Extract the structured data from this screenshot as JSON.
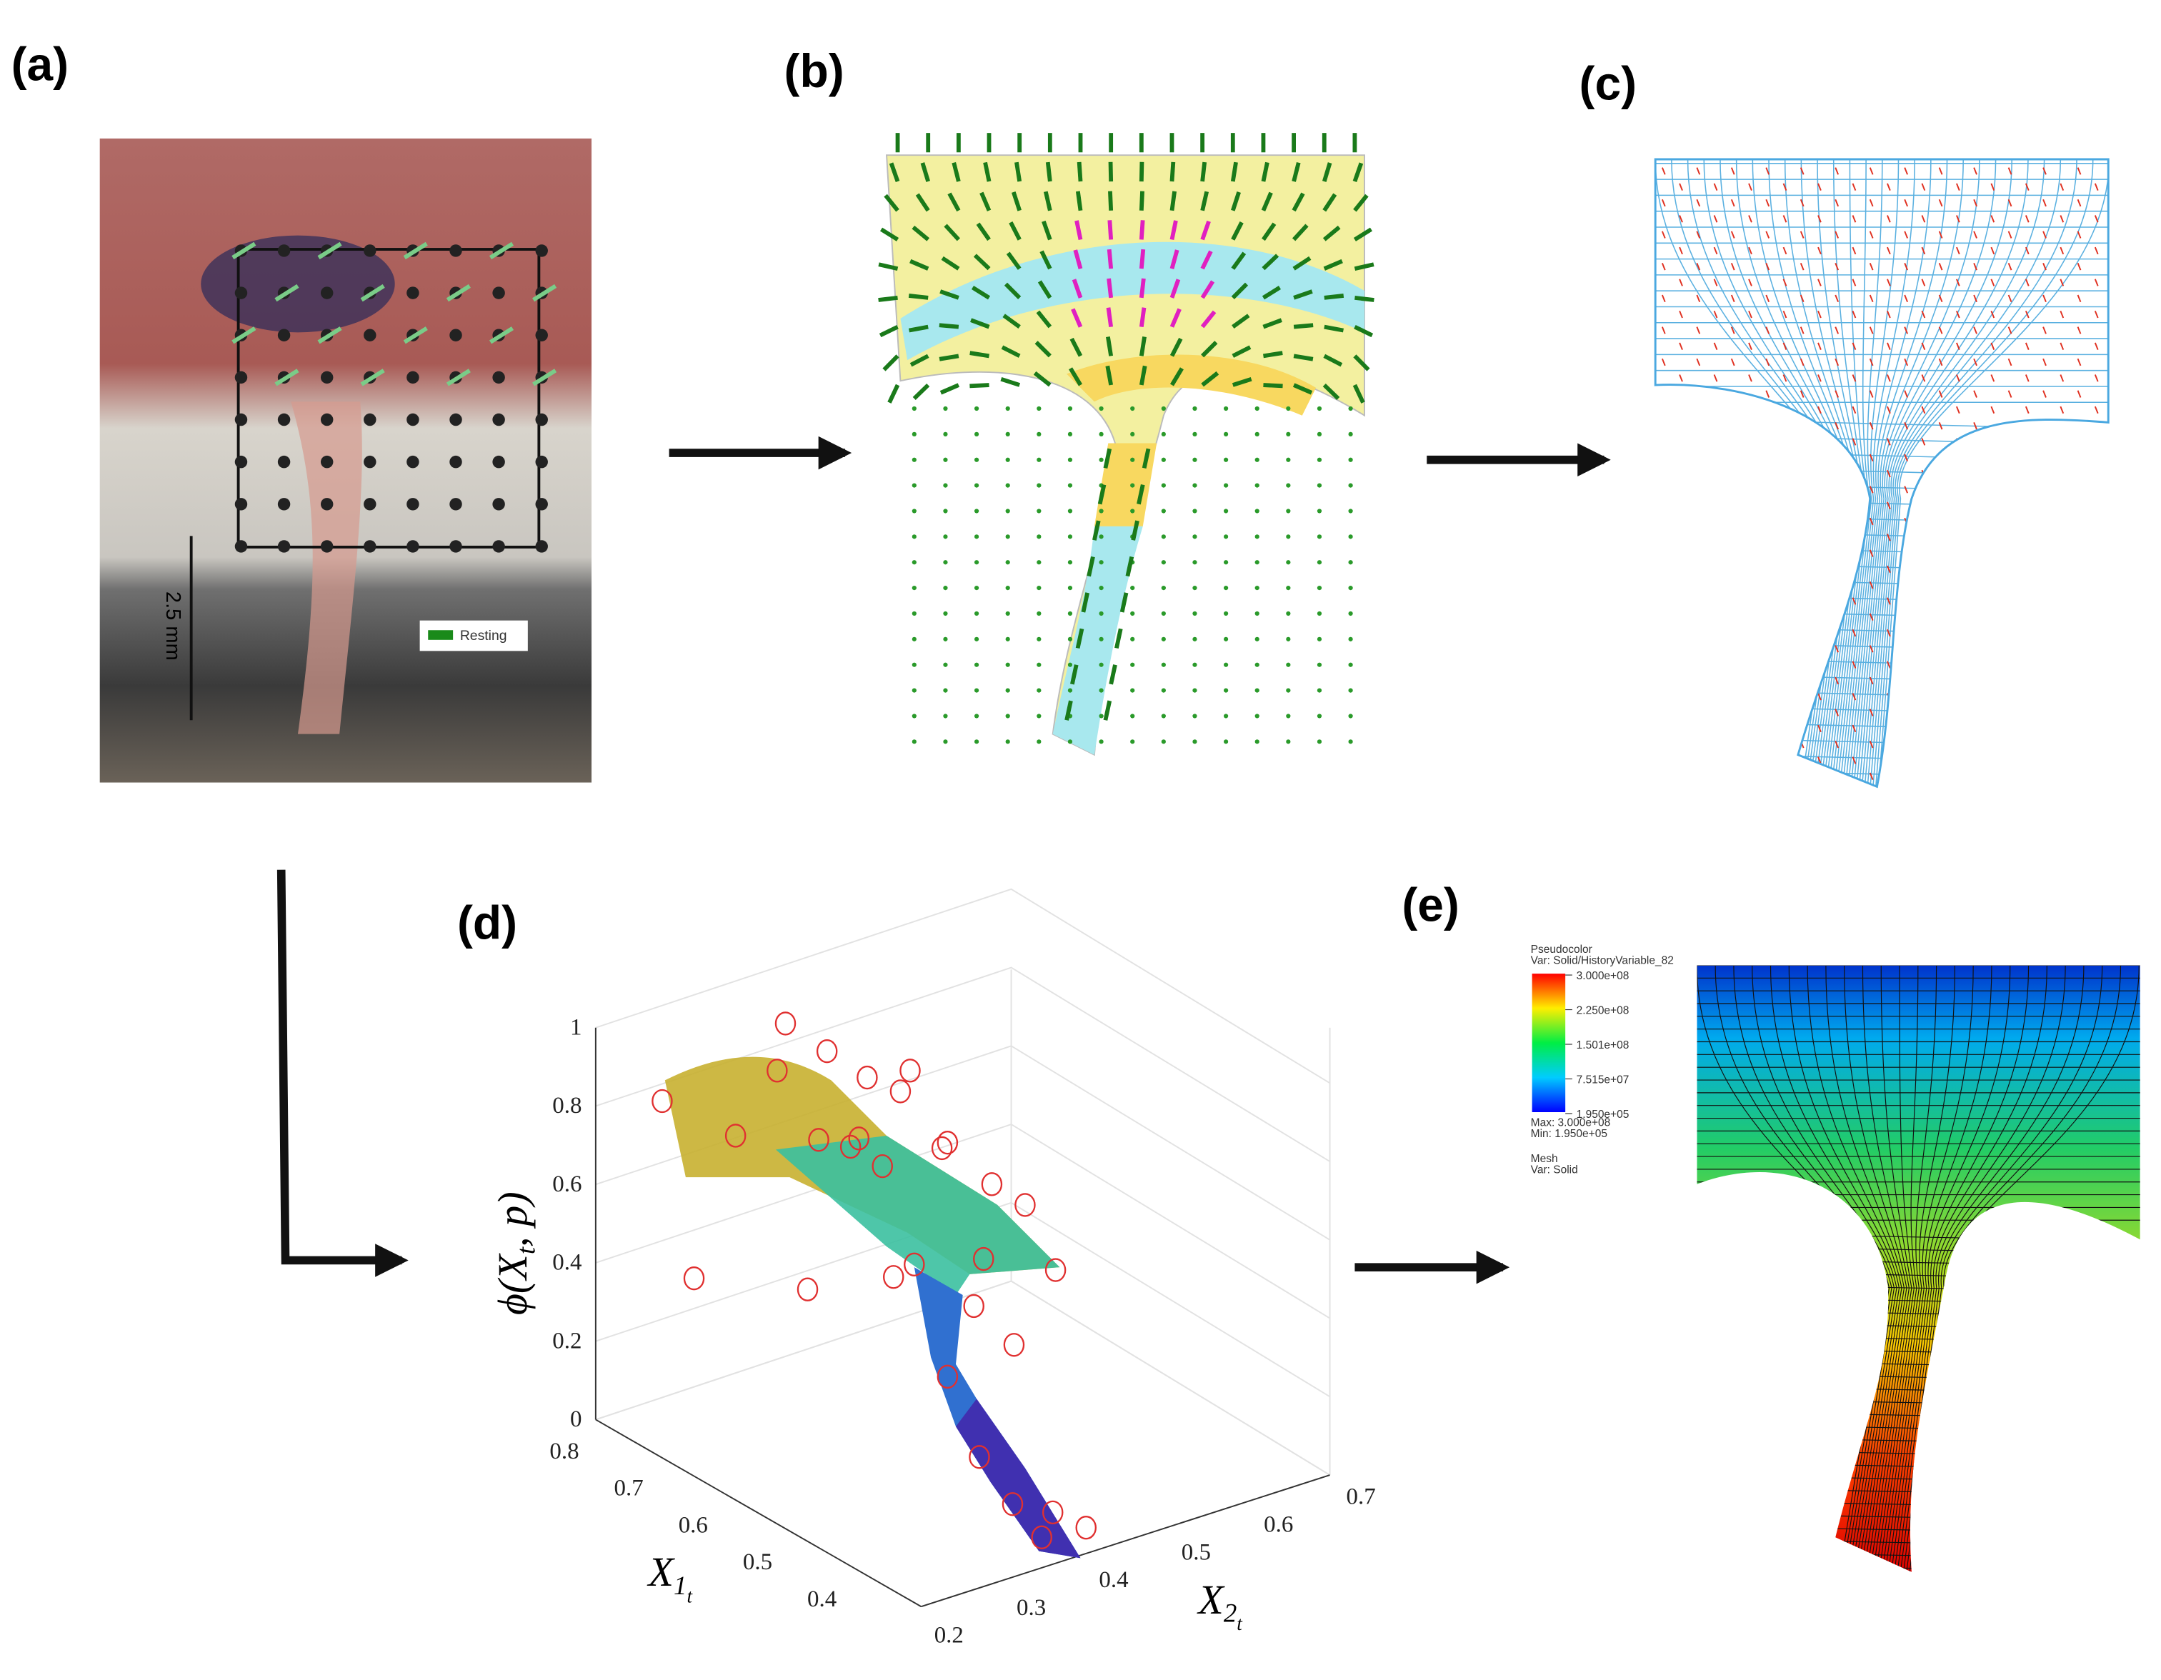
{
  "panels": {
    "a": {
      "label": "(a)",
      "scale_bar": "2.5 mm",
      "legend": "Resting"
    },
    "b": {
      "label": "(b)"
    },
    "c": {
      "label": "(c)"
    },
    "d": {
      "label": "(d)",
      "z_label": {
        "base": "ϕ(X",
        "sub": "t",
        "rest": ", p)"
      },
      "x1_label": {
        "base": "X",
        "sub": "1",
        "subsub": "t"
      },
      "x2_label": {
        "base": "X",
        "sub": "2",
        "subsub": "t"
      },
      "z_ticks": [
        "0",
        "0.2",
        "0.4",
        "0.6",
        "0.8",
        "1"
      ],
      "x1_ticks": [
        "0.8",
        "0.7",
        "0.6",
        "0.5",
        "0.4"
      ],
      "x2_ticks": [
        "0.2",
        "0.3",
        "0.4",
        "0.5",
        "0.6",
        "0.7"
      ]
    },
    "e": {
      "label": "(e)",
      "legend_title": "Pseudocolor",
      "legend_var": "Var: Solid/HistoryVariable_82",
      "legend_ticks": [
        "3.000e+08",
        "2.250e+08",
        "1.501e+08",
        "7.515e+07",
        "1.950e+05"
      ],
      "max": "Max:  3.000e+08",
      "min": "Min:  1.950e+05",
      "mesh_title": "Mesh",
      "mesh_var": "Var: Solid"
    }
  }
}
